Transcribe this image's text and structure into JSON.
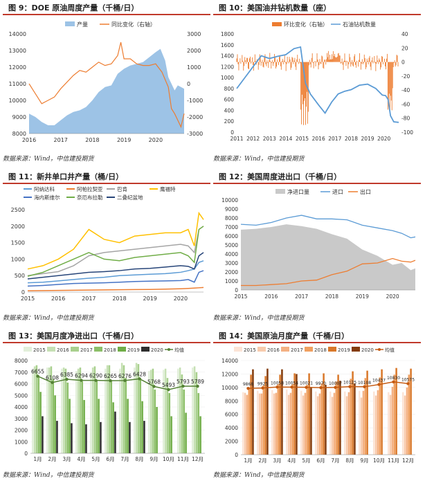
{
  "panels": [
    {
      "title": "图 9：DOE 原油周度产量（千桶/日）",
      "source": "数据来源：Wind，中信建投期货"
    },
    {
      "title": "图 10：美国油井钻机数量（座）",
      "source": "数据来源：Wind，中信建投期货"
    },
    {
      "title": "图 11：新井单口井产量（桶/日）",
      "source": "数据来源：Wind，中信建投期货"
    },
    {
      "title": "图 12：美国周度进出口（千桶/日）",
      "source": "数据来源：Wind，中信建投期货"
    },
    {
      "title": "图 13：美国月度净进出口（千桶/日）",
      "source": "数据来源：Wind，中信建投期货"
    },
    {
      "title": "图 14：美国原油月度产量（千桶/日）",
      "source": "数据来源：Wind，中信建投期货"
    }
  ],
  "chart_data": [
    {
      "type": "area",
      "legend": [
        "产量",
        "同比变化（右轴）"
      ],
      "colors": {
        "area": "#9dc3e6",
        "line": "#ed7d31"
      },
      "x_ticks": [
        "2016",
        "2017",
        "2018",
        "2019",
        "2020"
      ],
      "xlim": [
        2016,
        2020.9
      ],
      "ylim": [
        8000,
        14000
      ],
      "y_ticks": [
        8000,
        9000,
        10000,
        11000,
        12000,
        13000,
        14000
      ],
      "y2lim": [
        -3000,
        3000
      ],
      "y2_ticks": [
        -3000,
        -2000,
        -1000,
        0,
        1000,
        2000,
        3000
      ],
      "series": [
        {
          "name": "产量",
          "axis": "left",
          "x": [
            2016,
            2016.2,
            2016.4,
            2016.6,
            2016.8,
            2017,
            2017.2,
            2017.4,
            2017.6,
            2017.8,
            2018,
            2018.2,
            2018.4,
            2018.6,
            2018.8,
            2019,
            2019.2,
            2019.4,
            2019.6,
            2019.8,
            2020,
            2020.15,
            2020.3,
            2020.4,
            2020.5,
            2020.6,
            2020.7,
            2020.8,
            2020.9
          ],
          "y": [
            9200,
            9000,
            8700,
            8500,
            8500,
            8800,
            9100,
            9300,
            9400,
            9600,
            10000,
            10500,
            10800,
            10900,
            11600,
            11900,
            12100,
            12200,
            12300,
            12600,
            12900,
            13100,
            12400,
            11400,
            11000,
            10600,
            10900,
            10800,
            10700
          ]
        },
        {
          "name": "同比变化（右轴）",
          "axis": "right",
          "x": [
            2016,
            2016.2,
            2016.4,
            2016.6,
            2016.8,
            2017,
            2017.2,
            2017.4,
            2017.6,
            2017.8,
            2018,
            2018.2,
            2018.4,
            2018.6,
            2018.8,
            2018.9,
            2019,
            2019.2,
            2019.4,
            2019.6,
            2019.8,
            2020,
            2020.2,
            2020.4,
            2020.5,
            2020.6,
            2020.7,
            2020.8,
            2020.9
          ],
          "y": [
            0,
            -600,
            -1200,
            -1000,
            -800,
            -300,
            100,
            500,
            800,
            700,
            1000,
            1300,
            1100,
            1200,
            1700,
            2500,
            1500,
            1500,
            1200,
            1100,
            1100,
            1200,
            700,
            -200,
            -1500,
            -1800,
            -2200,
            -2600,
            -1800
          ]
        }
      ]
    },
    {
      "type": "line",
      "legend": [
        "环比变化（右轴）",
        "石油钻机数量"
      ],
      "colors": {
        "bars": "#ed7d31",
        "line": "#5b9bd5"
      },
      "x_ticks": [
        "2011",
        "2012",
        "2013",
        "2014",
        "2015",
        "2016",
        "2017",
        "2018",
        "2019",
        "2020"
      ],
      "xlim": [
        2011,
        2020.9
      ],
      "ylim": [
        0,
        1800
      ],
      "y_ticks": [
        0,
        200,
        400,
        600,
        800,
        1000,
        1200,
        1400,
        1600,
        1800
      ],
      "y2lim": [
        -100,
        40
      ],
      "y2_ticks": [
        -100,
        -80,
        -60,
        -40,
        -20,
        0,
        20,
        40
      ],
      "series": [
        {
          "name": "石油钻机数量",
          "axis": "left",
          "x": [
            2011,
            2011.5,
            2012,
            2012.5,
            2013,
            2013.5,
            2014,
            2014.5,
            2014.9,
            2015.2,
            2015.5,
            2016,
            2016.4,
            2016.8,
            2017.2,
            2017.6,
            2018,
            2018.5,
            2019,
            2019.5,
            2019.9,
            2020.1,
            2020.25,
            2020.4,
            2020.6,
            2020.9
          ],
          "y": [
            800,
            1000,
            1200,
            1400,
            1350,
            1390,
            1420,
            1530,
            1560,
            900,
            700,
            500,
            350,
            550,
            700,
            750,
            780,
            860,
            880,
            800,
            680,
            670,
            600,
            300,
            190,
            180
          ]
        }
      ]
    },
    {
      "type": "line",
      "legend": [
        "阿纳达科",
        "阿帕拉契亚",
        "巴肯",
        "鹰福特",
        "海内斯维尔",
        "奈厄布拉勒",
        "二叠纪盆地"
      ],
      "colors": [
        "#5b9bd5",
        "#ed7d31",
        "#a5a5a5",
        "#ffc000",
        "#4472c4",
        "#70ad47",
        "#264478"
      ],
      "x_ticks": [
        "2015",
        "2016",
        "2017",
        "2018",
        "2019",
        "2020"
      ],
      "xlim": [
        2015,
        2020.75
      ],
      "ylim": [
        0,
        2500
      ],
      "y_ticks": [
        0,
        500,
        1000,
        1500,
        2000,
        2500
      ],
      "x": [
        2015,
        2015.5,
        2016,
        2016.5,
        2017,
        2017.5,
        2018,
        2018.5,
        2019,
        2019.5,
        2020,
        2020.25,
        2020.45,
        2020.6,
        2020.75
      ],
      "series": [
        {
          "name": "阿纳达科",
          "values": [
            280,
            300,
            340,
            380,
            420,
            450,
            500,
            520,
            540,
            560,
            600,
            650,
            700,
            900,
            950
          ]
        },
        {
          "name": "阿帕拉契亚",
          "values": [
            40,
            45,
            50,
            55,
            60,
            65,
            70,
            75,
            80,
            90,
            100,
            110,
            120,
            130,
            140
          ]
        },
        {
          "name": "巴肯",
          "values": [
            500,
            560,
            620,
            800,
            1100,
            1200,
            1250,
            1300,
            1350,
            1400,
            1450,
            1400,
            1200,
            1900,
            2000
          ]
        },
        {
          "name": "鹰福特",
          "values": [
            700,
            800,
            1000,
            1300,
            1900,
            1600,
            1500,
            1700,
            1750,
            1800,
            1800,
            1900,
            1400,
            2400,
            2200
          ]
        },
        {
          "name": "海内斯维尔",
          "values": [
            180,
            200,
            230,
            260,
            270,
            280,
            300,
            320,
            330,
            340,
            350,
            380,
            300,
            600,
            650
          ]
        },
        {
          "name": "奈厄布拉勒",
          "values": [
            480,
            600,
            800,
            1000,
            1200,
            1000,
            950,
            1050,
            1100,
            1150,
            1200,
            1100,
            900,
            1900,
            2000
          ]
        },
        {
          "name": "二叠纪盆地",
          "values": [
            400,
            450,
            500,
            550,
            600,
            620,
            650,
            700,
            720,
            760,
            800,
            780,
            700,
            1100,
            1200
          ]
        }
      ]
    },
    {
      "type": "line",
      "legend": [
        "净进口量",
        "进口",
        "出口"
      ],
      "colors": {
        "net": "#c9c9c9",
        "import": "#5b9bd5",
        "export": "#ed7d31"
      },
      "x_ticks": [
        "2015",
        "2016",
        "2017",
        "2018",
        "2019",
        "2020"
      ],
      "xlim": [
        2015,
        2020.75
      ],
      "ylim": [
        0,
        10000
      ],
      "y_ticks": [
        0,
        1000,
        2000,
        3000,
        4000,
        5000,
        6000,
        7000,
        8000,
        9000,
        10000
      ],
      "x": [
        2015,
        2015.5,
        2016,
        2016.5,
        2017,
        2017.5,
        2018,
        2018.5,
        2019,
        2019.5,
        2020,
        2020.3,
        2020.6,
        2020.75
      ],
      "series": [
        {
          "name": "净进口量",
          "values": [
            6700,
            6800,
            7000,
            7300,
            7100,
            6800,
            6200,
            5700,
            4500,
            3800,
            2800,
            3000,
            2200,
            2400
          ]
        },
        {
          "name": "进口",
          "values": [
            7300,
            7200,
            7500,
            8000,
            8300,
            7900,
            7900,
            7800,
            7200,
            6900,
            6600,
            6300,
            5800,
            5900
          ]
        },
        {
          "name": "出口",
          "values": [
            500,
            500,
            600,
            700,
            1000,
            1100,
            1700,
            2100,
            2900,
            3000,
            3500,
            3200,
            3100,
            3300
          ]
        }
      ]
    },
    {
      "type": "bar",
      "legend": [
        "2015",
        "2016",
        "2017",
        "2018",
        "2019",
        "2020",
        "均值"
      ],
      "colors": [
        "#e2efda",
        "#c6e0b4",
        "#a9d08e",
        "#8dbf69",
        "#70ad47",
        "#2f2f2f",
        "#548235"
      ],
      "categories": [
        "1月",
        "2月",
        "3月",
        "4月",
        "5月",
        "6月",
        "7月",
        "8月",
        "9月",
        "10月",
        "11月",
        "12月"
      ],
      "ylim": [
        0,
        8000
      ],
      "y_ticks": [
        0,
        1000,
        2000,
        3000,
        4000,
        5000,
        6000,
        7000,
        8000
      ],
      "series": [
        {
          "name": "2015",
          "values": [
            7200,
            7400,
            7300,
            7100,
            7000,
            7300,
            7300,
            7400,
            7100,
            7200,
            7300,
            7400
          ]
        },
        {
          "name": "2016",
          "values": [
            7500,
            7400,
            7400,
            7300,
            7400,
            7600,
            7800,
            7800,
            7200,
            7300,
            7400,
            7500
          ]
        },
        {
          "name": "2017",
          "values": [
            7600,
            7500,
            7300,
            7400,
            7500,
            7600,
            7600,
            7700,
            7300,
            6500,
            6800,
            7000
          ]
        },
        {
          "name": "2018",
          "values": [
            6700,
            6400,
            6100,
            6200,
            6300,
            6300,
            6500,
            6500,
            5500,
            5200,
            5500,
            5200
          ]
        },
        {
          "name": "2019",
          "values": [
            5300,
            5000,
            4700,
            4600,
            4700,
            4400,
            4700,
            4500,
            4000,
            3200,
            3500,
            3200
          ]
        },
        {
          "name": "2020",
          "values": [
            3200,
            2800,
            2600,
            2500,
            2700,
            3600,
            2700,
            2800,
            null,
            null,
            null,
            null
          ]
        },
        {
          "name": "均值",
          "values": [
            6655,
            6108,
            6385,
            6294,
            6290,
            6265,
            6276,
            6428,
            5768,
            5493,
            5793,
            5789
          ],
          "labels": [
            "6655",
            "6108",
            "6385",
            "6294",
            "6290",
            "6265",
            "6276",
            "6428",
            "5768",
            "5493",
            "5793",
            "5789"
          ]
        }
      ]
    },
    {
      "type": "bar",
      "legend": [
        "2015",
        "2016",
        "2017",
        "2018",
        "2019",
        "2020",
        "均值"
      ],
      "colors": [
        "#fce4d6",
        "#f8cbad",
        "#f4b183",
        "#f0a060",
        "#d9782a",
        "#843c0c",
        "#c55a11"
      ],
      "categories": [
        "1月",
        "2月",
        "3月",
        "4月",
        "5月",
        "6月",
        "7月",
        "8月",
        "9月",
        "10月",
        "11月",
        "12月"
      ],
      "ylim": [
        0,
        14000
      ],
      "y_ticks": [
        0,
        2000,
        4000,
        6000,
        8000,
        10000,
        12000,
        14000
      ],
      "series": [
        {
          "name": "2015",
          "values": [
            9300,
            9500,
            9600,
            9700,
            9500,
            9400,
            9400,
            9400,
            9500,
            9400,
            9300,
            9300
          ]
        },
        {
          "name": "2016",
          "values": [
            9200,
            9100,
            9100,
            8900,
            8800,
            8700,
            8600,
            8700,
            8500,
            8800,
            8900,
            8800
          ]
        },
        {
          "name": "2017",
          "values": [
            8900,
            9100,
            9200,
            9200,
            9200,
            9100,
            9200,
            9300,
            9500,
            9600,
            10100,
            10000
          ]
        },
        {
          "name": "2018",
          "values": [
            10000,
            10300,
            10500,
            10500,
            10400,
            10600,
            10900,
            11300,
            11400,
            11500,
            11900,
            11900
          ]
        },
        {
          "name": "2019",
          "values": [
            11900,
            11700,
            11900,
            12100,
            12100,
            12100,
            11900,
            12400,
            12500,
            12700,
            12900,
            12800
          ]
        },
        {
          "name": "2020",
          "values": [
            12700,
            12800,
            12700,
            12000,
            10000,
            10400,
            11000,
            10600,
            null,
            null,
            null,
            null
          ]
        },
        {
          "name": "均值",
          "values": [
            9868,
            9925,
            10058,
            10054,
            10021,
            9970,
            10007,
            10125,
            10108,
            10437,
            10830,
            10575
          ],
          "labels": [
            "9868",
            "9925",
            "10058",
            "10054",
            "10021",
            "9970",
            "10007",
            "10125",
            "10108",
            "10437",
            "10830",
            "10575"
          ]
        }
      ]
    }
  ]
}
